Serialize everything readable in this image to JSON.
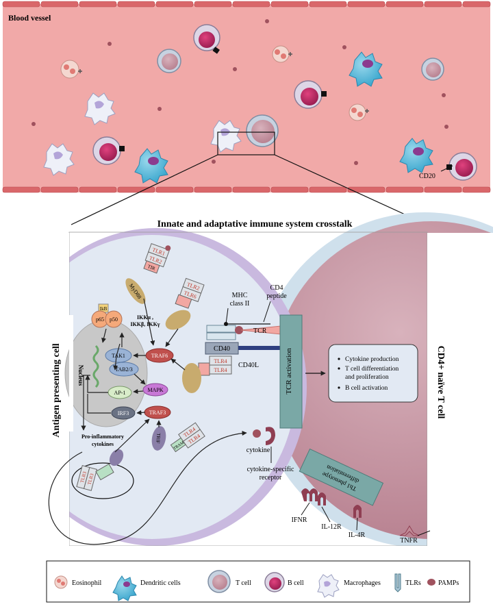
{
  "vessel": {
    "title": "Blood vessel",
    "cd20_label": "CD20"
  },
  "crosstalk": {
    "title": "Innate and adaptative immune system crosstalk",
    "apc_label": "Antigen presenting cell",
    "tcell_label": "CD4+ naïve T cell",
    "nucleus_label": "Nucleus",
    "receptors": {
      "tlr1": "TLR1",
      "tlr2": "TLR2",
      "tlr2b": "TLR2",
      "tlr6": "TLR6",
      "tlr4a": "TLR4",
      "tlr4b": "TLR4",
      "tlr4c": "TLR4",
      "tlr4d": "TLR4",
      "tlr3a": "TLR3",
      "tlr3b": "TLR3"
    },
    "adaptors": {
      "tir": "TIR",
      "myd88": "MyD88",
      "tram": "TRAM",
      "trif": "TRIF"
    },
    "signaling": {
      "ikb": "IkB",
      "p65": "p65",
      "p50": "p50",
      "ikk_1": "IKKα ,",
      "ikk_2": "IKKβ, IKKγ",
      "tak1": "TAK1",
      "tab23": "TAB2/3",
      "traf6": "TRAF6",
      "mapk": "MAPK",
      "ap1": "AP-1",
      "irf3": "IRF3",
      "traf3": "TRAF3",
      "proinflammatory_1": "Pro-inflammatory",
      "proinflammatory_2": "cytokines"
    },
    "synapse": {
      "mhc_1": "MHC",
      "mhc_2": "class II",
      "cd4": "CD4",
      "peptide": "peptide",
      "tcr": "TCR",
      "cd40": "CD40",
      "cd40l": "CD40L",
      "tcr_activation": "TCR activation",
      "cytokine": "cytokine",
      "receptor_1": "cytokine-specific",
      "receptor_2": "receptor"
    },
    "outcomes": [
      "Cytokine production",
      "T cell differentiation",
      "and proliferation",
      "B cell activation"
    ],
    "th1": {
      "line1": "Th1 phenotype",
      "line2": "differentiation"
    },
    "cytokine_receptors": {
      "ifnr": "IFNR",
      "il12r": "IL-12R",
      "il4r": "IL-4R",
      "tnfr": "TNFR"
    }
  },
  "legend": {
    "eosinophil": "Eosinophil",
    "dendritic": "Dendritic cells",
    "tcell": "T cell",
    "bcell": "B cell",
    "macrophages": "Macrophages",
    "tlrs": "TLRs",
    "pamps": "PAMPs"
  },
  "colors": {
    "vessel_fill": "#f1a9a8",
    "vessel_wall": "#d9676a",
    "apc_fill": "#e2e9f3",
    "apc_membrane": "#c9b9df",
    "tcell_fill": "#c8929f",
    "tcell_membrane": "#cfe0ec",
    "teal": "#7aa8a6",
    "traf_red": "#c0504d",
    "tlr_red": "#c0392b",
    "tir_pink": "#f2a7a2",
    "tan": "#c8ab6e"
  }
}
